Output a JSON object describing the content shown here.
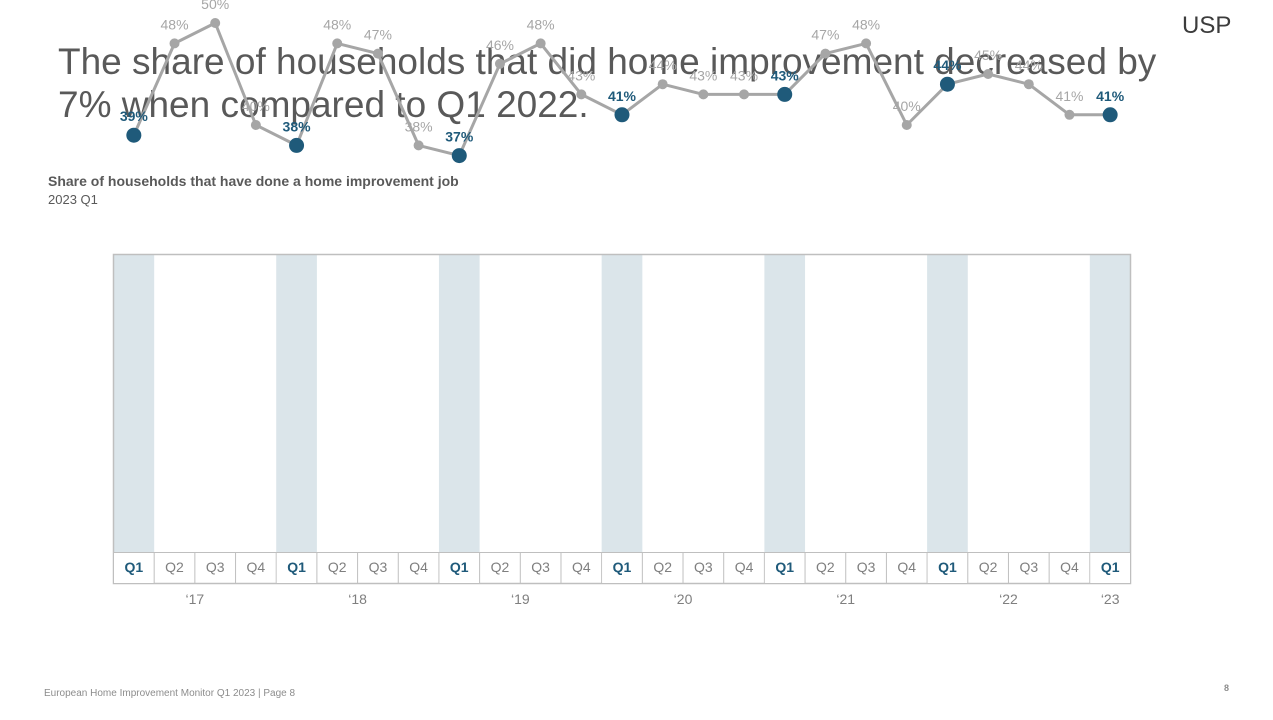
{
  "logo": "USP",
  "headline": "The share of households that did home improvement decreased by 7% when compared to Q1 2022.",
  "footer": "European Home Improvement Monitor Q1 2023 | Page 8",
  "page_number": "8",
  "colors": {
    "highlight": "#1f5a7a",
    "line": "#a6a6a6",
    "band": "#dbe5ea",
    "muted_text": "#a6a6a6"
  },
  "chart_data": {
    "type": "line",
    "title": "Share of households that have done a home improvement job",
    "subtitle": "2023 Q1",
    "categories": [
      "Q1",
      "Q2",
      "Q3",
      "Q4",
      "Q1",
      "Q2",
      "Q3",
      "Q4",
      "Q1",
      "Q2",
      "Q3",
      "Q4",
      "Q1",
      "Q2",
      "Q3",
      "Q4",
      "Q1",
      "Q2",
      "Q3",
      "Q4",
      "Q1",
      "Q2",
      "Q3",
      "Q4",
      "Q1"
    ],
    "years": [
      {
        "label": "‘17",
        "start": 0,
        "end": 3
      },
      {
        "label": "‘18",
        "start": 4,
        "end": 7
      },
      {
        "label": "‘19",
        "start": 8,
        "end": 11
      },
      {
        "label": "‘20",
        "start": 12,
        "end": 15
      },
      {
        "label": "‘21",
        "start": 16,
        "end": 19
      },
      {
        "label": "‘22",
        "start": 20,
        "end": 23
      },
      {
        "label": "‘23",
        "start": 24,
        "end": 24
      }
    ],
    "series": [
      {
        "values": [
          39,
          48,
          50,
          40,
          38,
          48,
          47,
          38,
          37,
          46,
          48,
          43,
          41,
          44,
          43,
          43,
          43,
          47,
          48,
          40,
          44,
          45,
          44,
          41,
          41
        ]
      }
    ],
    "labels": [
      "39%",
      "48%",
      "50%",
      "40%",
      "38%",
      "48%",
      "47%",
      "38%",
      "37%",
      "46%",
      "48%",
      "43%",
      "41%",
      "44%",
      "43%",
      "43%",
      "43%",
      "47%",
      "48%",
      "40%",
      "44%",
      "45%",
      "44%",
      "41%",
      "41%"
    ],
    "highlighted_quarter": "Q1",
    "grid": false,
    "legend": false
  }
}
